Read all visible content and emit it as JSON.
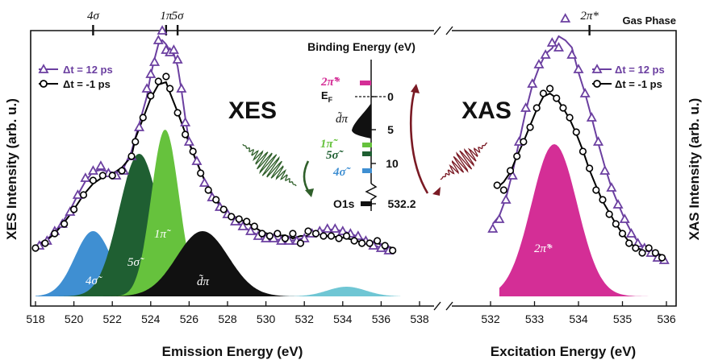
{
  "chart_data": {
    "type": "line",
    "corner_label": "Gas Phase",
    "xes": {
      "title": "XES",
      "xlabel": "Emission Energy (eV)",
      "ylabel": "XES Intensity (arb. u.)",
      "xlim": [
        518,
        538
      ],
      "xticks": [
        "518",
        "520",
        "522",
        "524",
        "526",
        "528",
        "530",
        "532",
        "534",
        "536",
        "538"
      ],
      "top_markers": [
        {
          "label": "4σ",
          "x": 521.0
        },
        {
          "label": "1π",
          "x": 524.8
        },
        {
          "label": "5σ",
          "x": 525.4
        }
      ],
      "legend": [
        {
          "label": "Δt = 12 ps",
          "color": "#6b3fa0",
          "marker": "triangle"
        },
        {
          "label": "Δt = -1 ps",
          "color": "#000000",
          "marker": "circle"
        }
      ],
      "components": [
        {
          "label": "4σ̃",
          "color": "#3f8fd2",
          "center": 521.0,
          "height": 0.27,
          "width": 0.95
        },
        {
          "label": "5σ̃",
          "color": "#1f5f32",
          "center": 523.4,
          "height": 0.59,
          "width": 1.05
        },
        {
          "label": "1π̃",
          "color": "#66c23d",
          "center": 524.75,
          "height": 0.69,
          "width": 0.72
        },
        {
          "label": "d̃π",
          "color": "#111111",
          "center": 526.7,
          "height": 0.27,
          "width": 1.35
        },
        {
          "label": "",
          "color": "#56bccc",
          "center": 534.2,
          "height": 0.04,
          "width": 1.0
        }
      ],
      "series": [
        {
          "name": "Δt = 12 ps",
          "x": [
            518.2,
            518.6,
            519.0,
            519.4,
            519.8,
            520.2,
            520.6,
            521.0,
            521.4,
            521.8,
            522.2,
            522.6,
            523.0,
            523.4,
            523.8,
            524.0,
            524.2,
            524.4,
            524.6,
            524.8,
            525.0,
            525.2,
            525.4,
            525.6,
            525.8,
            526.0,
            526.4,
            526.8,
            527.2,
            527.6,
            528.0,
            528.4,
            528.8,
            529.2,
            529.6,
            530.0,
            530.4,
            530.8,
            531.2,
            531.6,
            532.0,
            532.4,
            532.8,
            533.2,
            533.6,
            534.0,
            534.4,
            534.8,
            535.2,
            535.6,
            536.0,
            536.4
          ],
          "y": [
            0.21,
            0.23,
            0.27,
            0.3,
            0.35,
            0.42,
            0.49,
            0.52,
            0.54,
            0.51,
            0.5,
            0.52,
            0.58,
            0.7,
            0.86,
            0.92,
            0.97,
            1.06,
            1.1,
            1.02,
            1.01,
            1.02,
            0.98,
            0.86,
            0.72,
            0.64,
            0.56,
            0.47,
            0.41,
            0.37,
            0.34,
            0.31,
            0.29,
            0.27,
            0.25,
            0.24,
            0.24,
            0.23,
            0.23,
            0.23,
            0.24,
            0.26,
            0.27,
            0.28,
            0.28,
            0.27,
            0.26,
            0.25,
            0.23,
            0.21,
            0.2,
            0.19
          ]
        },
        {
          "name": "Δt = -1 ps",
          "x": [
            518.0,
            518.5,
            519.0,
            519.5,
            520.0,
            520.5,
            521.0,
            521.5,
            522.0,
            522.5,
            523.0,
            523.2,
            523.6,
            524.0,
            524.4,
            524.8,
            525.0,
            525.4,
            525.8,
            526.2,
            526.6,
            527.0,
            527.4,
            527.8,
            528.2,
            528.6,
            529.0,
            529.4,
            529.8,
            530.2,
            530.6,
            531.0,
            531.4,
            531.8,
            532.2,
            532.6,
            533.0,
            533.4,
            533.8,
            534.2,
            534.6,
            535.0,
            535.4,
            535.8,
            536.2,
            536.6
          ],
          "y": [
            0.2,
            0.22,
            0.26,
            0.3,
            0.36,
            0.42,
            0.48,
            0.5,
            0.5,
            0.52,
            0.58,
            0.64,
            0.74,
            0.83,
            0.89,
            0.91,
            0.86,
            0.76,
            0.67,
            0.6,
            0.51,
            0.44,
            0.4,
            0.36,
            0.33,
            0.32,
            0.31,
            0.29,
            0.26,
            0.25,
            0.26,
            0.24,
            0.26,
            0.22,
            0.27,
            0.26,
            0.25,
            0.25,
            0.24,
            0.25,
            0.23,
            0.22,
            0.22,
            0.23,
            0.21,
            0.19
          ]
        }
      ]
    },
    "xas": {
      "title": "XAS",
      "xlabel": "Excitation Energy (eV)",
      "ylabel": "XAS Intensity (arb. u.)",
      "xlim": [
        532,
        536
      ],
      "xticks": [
        "532",
        "533",
        "534",
        "535",
        "536"
      ],
      "top_markers": [
        {
          "label": "2π*",
          "x": 534.25
        }
      ],
      "legend": [
        {
          "label": "Δt = 12 ps",
          "color": "#6b3fa0",
          "marker": "triangle"
        },
        {
          "label": "Δt = -1 ps",
          "color": "#000000",
          "marker": "circle"
        }
      ],
      "component": {
        "label": "2π̃*",
        "color": "#d42e96",
        "center": 533.45,
        "height": 0.63,
        "width": 0.52
      },
      "series": [
        {
          "name": "Δt = 12 ps",
          "x": [
            532.05,
            532.2,
            532.35,
            532.5,
            532.65,
            532.8,
            532.95,
            533.1,
            533.25,
            533.4,
            533.55,
            533.7,
            533.85,
            534.0,
            534.15,
            534.3,
            534.45,
            534.6,
            534.75,
            534.9,
            535.05,
            535.2,
            535.35,
            535.5,
            535.65,
            535.8,
            535.95
          ],
          "y": [
            0.28,
            0.32,
            0.4,
            0.5,
            0.64,
            0.78,
            0.88,
            0.96,
            1.0,
            1.05,
            1.03,
            1.15,
            1.0,
            0.94,
            0.84,
            0.74,
            0.64,
            0.52,
            0.45,
            0.38,
            0.32,
            0.26,
            0.22,
            0.2,
            0.18,
            0.16,
            0.15
          ]
        },
        {
          "name": "Δt = -1 ps",
          "x": [
            532.15,
            532.3,
            532.45,
            532.6,
            532.75,
            532.9,
            533.05,
            533.2,
            533.35,
            533.5,
            533.65,
            533.8,
            533.95,
            534.1,
            534.25,
            534.4,
            534.55,
            534.7,
            534.85,
            535.0,
            535.15,
            535.3,
            535.45,
            535.6,
            535.75,
            535.9
          ],
          "y": [
            0.46,
            0.44,
            0.52,
            0.58,
            0.64,
            0.7,
            0.78,
            0.84,
            0.86,
            0.82,
            0.78,
            0.74,
            0.68,
            0.6,
            0.53,
            0.44,
            0.4,
            0.34,
            0.3,
            0.26,
            0.22,
            0.2,
            0.18,
            0.2,
            0.18,
            0.16
          ]
        }
      ]
    },
    "energy_diagram": {
      "axis_label": "Binding Energy (eV)",
      "ticks": [
        "0",
        "5",
        "10",
        "532.2"
      ],
      "levels": [
        {
          "label": "2π̃*",
          "color": "#d42e96"
        },
        {
          "label": "E",
          "color": "#111111",
          "subscript": "F"
        },
        {
          "label": "d̃π",
          "color": "#111111"
        },
        {
          "label": "1π̃",
          "color": "#66c23d"
        },
        {
          "label": "5σ̃",
          "color": "#1f5f32"
        },
        {
          "label": "4σ̃",
          "color": "#3f8fd2"
        },
        {
          "label": "O1s",
          "color": "#111111"
        }
      ]
    },
    "colors": {
      "xes_wave": "#2f5f2a",
      "xas_wave": "#7a1a24"
    }
  }
}
